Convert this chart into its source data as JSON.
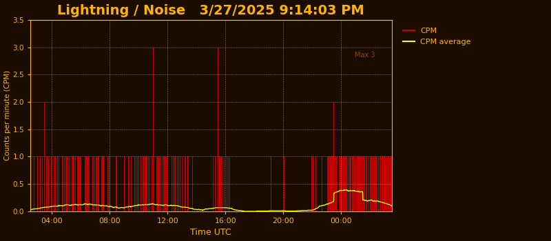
{
  "title": "Lightning / Noise   3/27/2025 9:14:03 PM",
  "title_color": "#FFB300",
  "title_fontsize": 14,
  "xlabel": "Time UTC",
  "xlabel_color": "#FFB300",
  "ylabel": "Counts per minute (CPM)",
  "ylabel_color": "#FFB300",
  "bg_color": "#1a0d00",
  "axes_bg_color": "#1a0d00",
  "tick_color": "#FFB300",
  "grid_color": "#ffffff",
  "ylim": [
    0,
    3.5
  ],
  "yticks": [
    0,
    0.5,
    1.0,
    1.5,
    2.0,
    2.5,
    3.0,
    3.5
  ],
  "xtick_labels": [
    "04:00",
    "08:00",
    "12:00",
    "16:00",
    "20:00",
    "00:00"
  ],
  "max_label": "Max 3",
  "max_label_color": "#8B4513",
  "cpm_color": "#cc0000",
  "avg_color": "#ffff00",
  "legend_text_color": "#FFB300",
  "spine_color": "#FFB300",
  "num_points": 1500
}
